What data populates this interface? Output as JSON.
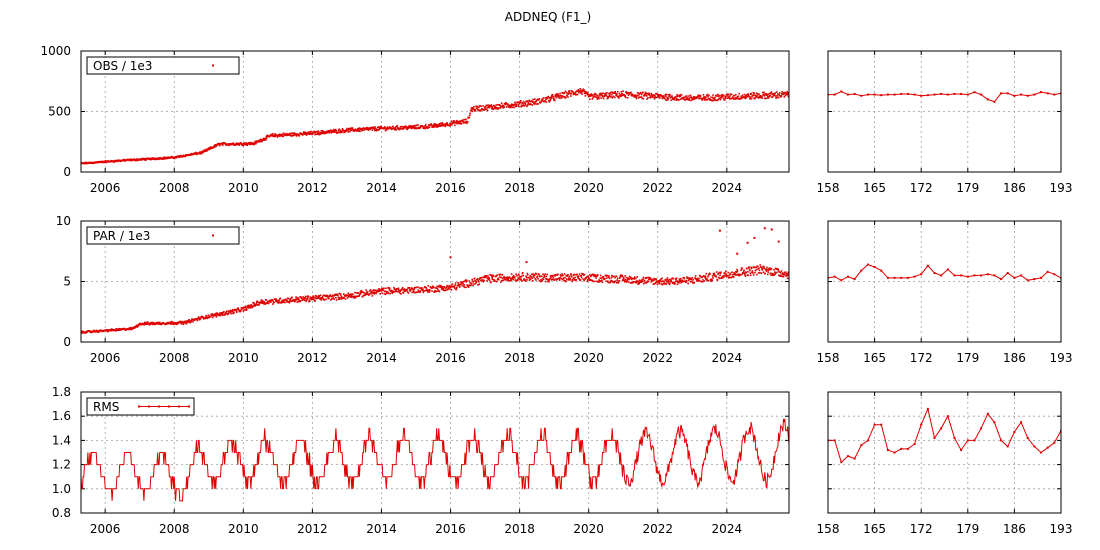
{
  "title": "ADDNEQ (F1_)",
  "colors": {
    "series": "#e00000",
    "grid": "#a0a0a0",
    "frame": "#000000"
  },
  "chart_data": [
    {
      "type": "scatter",
      "id": "obs-long",
      "legend": "OBS / 1e3",
      "legend_style": "points",
      "xlim": [
        2005.3,
        2025.8
      ],
      "ylim": [
        0,
        1000
      ],
      "x_ticks": [
        "2006",
        "2008",
        "2010",
        "2012",
        "2014",
        "2016",
        "2018",
        "2020",
        "2022",
        "2024"
      ],
      "y_ticks": [
        "0",
        "500",
        "1000"
      ],
      "trend": {
        "x": [
          2005.3,
          2006.5,
          2008.0,
          2008.8,
          2009.3,
          2010.3,
          2010.8,
          2012.0,
          2013.0,
          2014.0,
          2015.0,
          2015.5,
          2016.5,
          2016.6,
          2017.5,
          2018.5,
          2019.5,
          2019.8,
          2020.0,
          2021.0,
          2022.0,
          2023.0,
          2024.0,
          2025.8
        ],
        "y": [
          70,
          95,
          120,
          160,
          230,
          235,
          300,
          320,
          345,
          360,
          370,
          380,
          420,
          520,
          545,
          580,
          650,
          670,
          620,
          640,
          625,
          610,
          620,
          640
        ]
      },
      "scatter_pct": 0.04
    },
    {
      "type": "line",
      "id": "obs-short",
      "xlim": [
        158,
        193
      ],
      "ylim": [
        0,
        1000
      ],
      "x_ticks": [
        "158",
        "165",
        "172",
        "179",
        "186",
        "193"
      ],
      "x": [
        158,
        159,
        160,
        161,
        162,
        163,
        164,
        165,
        166,
        167,
        168,
        169,
        170,
        171,
        172,
        173,
        174,
        175,
        176,
        177,
        178,
        179,
        180,
        181,
        182,
        183,
        184,
        185,
        186,
        187,
        188,
        189,
        190,
        191,
        192,
        193
      ],
      "y": [
        640,
        640,
        665,
        640,
        645,
        630,
        640,
        640,
        635,
        640,
        640,
        645,
        645,
        640,
        630,
        635,
        640,
        645,
        640,
        645,
        645,
        640,
        660,
        640,
        600,
        580,
        650,
        650,
        630,
        640,
        630,
        640,
        660,
        650,
        640,
        650
      ]
    },
    {
      "type": "scatter",
      "id": "par-long",
      "legend": "PAR / 1e3",
      "legend_style": "points",
      "xlim": [
        2005.3,
        2025.8
      ],
      "ylim": [
        0,
        10
      ],
      "x_ticks": [
        "2006",
        "2008",
        "2010",
        "2012",
        "2014",
        "2016",
        "2018",
        "2020",
        "2022",
        "2024"
      ],
      "y_ticks": [
        "0",
        "5",
        "10"
      ],
      "trend": {
        "x": [
          2005.3,
          2006.8,
          2007.0,
          2008.3,
          2008.8,
          2010.0,
          2010.5,
          2012.0,
          2013.0,
          2014.0,
          2015.0,
          2016.0,
          2017.0,
          2018.0,
          2019.0,
          2020.0,
          2021.0,
          2022.0,
          2023.0,
          2024.0,
          2025.0,
          2025.8
        ],
        "y": [
          0.8,
          1.1,
          1.5,
          1.6,
          2.0,
          2.7,
          3.3,
          3.6,
          3.8,
          4.2,
          4.3,
          4.5,
          5.2,
          5.4,
          5.3,
          5.3,
          5.2,
          5.0,
          5.1,
          5.6,
          6.0,
          5.6
        ]
      },
      "scatter_pct": 0.06,
      "outliers": [
        [
          2016.0,
          7.0
        ],
        [
          2018.2,
          6.6
        ],
        [
          2023.8,
          9.2
        ],
        [
          2024.3,
          7.3
        ],
        [
          2024.8,
          8.6
        ],
        [
          2025.1,
          9.4
        ],
        [
          2025.3,
          9.3
        ],
        [
          2024.6,
          8.2
        ],
        [
          2025.5,
          8.3
        ]
      ]
    },
    {
      "type": "line",
      "id": "par-short",
      "xlim": [
        158,
        193
      ],
      "ylim": [
        0,
        10
      ],
      "x_ticks": [
        "158",
        "165",
        "172",
        "179",
        "186",
        "193"
      ],
      "x": [
        158,
        159,
        160,
        161,
        162,
        163,
        164,
        165,
        166,
        167,
        168,
        169,
        170,
        171,
        172,
        173,
        174,
        175,
        176,
        177,
        178,
        179,
        180,
        181,
        182,
        183,
        184,
        185,
        186,
        187,
        188,
        189,
        190,
        191,
        192,
        193
      ],
      "y": [
        5.3,
        5.4,
        5.1,
        5.4,
        5.2,
        5.9,
        6.4,
        6.2,
        5.9,
        5.3,
        5.3,
        5.3,
        5.3,
        5.4,
        5.6,
        6.3,
        5.7,
        5.5,
        6.0,
        5.5,
        5.5,
        5.4,
        5.5,
        5.5,
        5.6,
        5.5,
        5.2,
        5.7,
        5.3,
        5.5,
        5.1,
        5.2,
        5.3,
        5.8,
        5.6,
        5.3
      ]
    },
    {
      "type": "line",
      "id": "rms-long",
      "legend": "RMS",
      "legend_style": "linepoints",
      "xlim": [
        2005.3,
        2025.8
      ],
      "ylim": [
        0.8,
        1.8
      ],
      "x_ticks": [
        "2006",
        "2008",
        "2010",
        "2012",
        "2014",
        "2016",
        "2018",
        "2020",
        "2022",
        "2024"
      ],
      "y_ticks": [
        "0.8",
        "1.0",
        "1.2",
        "1.4",
        "1.6",
        "1.8"
      ],
      "seasonal": {
        "period": 1.0,
        "base_x": [
          2005.3,
          2008.5,
          2008.8,
          2021.0,
          2025.8
        ],
        "base_y": [
          1.15,
          1.1,
          1.22,
          1.25,
          1.3
        ],
        "amp_x": [
          2005.3,
          2008.5,
          2008.8,
          2021.0,
          2025.8
        ],
        "amp_y": [
          0.15,
          0.17,
          0.17,
          0.19,
          0.23
        ],
        "peak_phase": 0.65
      }
    },
    {
      "type": "line",
      "id": "rms-short",
      "xlim": [
        158,
        193
      ],
      "ylim": [
        0.8,
        1.8
      ],
      "x_ticks": [
        "158",
        "165",
        "172",
        "179",
        "186",
        "193"
      ],
      "x": [
        158,
        159,
        160,
        161,
        162,
        163,
        164,
        165,
        166,
        167,
        168,
        169,
        170,
        171,
        172,
        173,
        174,
        175,
        176,
        177,
        178,
        179,
        180,
        181,
        182,
        183,
        184,
        185,
        186,
        187,
        188,
        189,
        190,
        191,
        192,
        193
      ],
      "y": [
        1.4,
        1.4,
        1.22,
        1.27,
        1.25,
        1.36,
        1.4,
        1.53,
        1.53,
        1.32,
        1.3,
        1.33,
        1.33,
        1.37,
        1.53,
        1.66,
        1.42,
        1.5,
        1.6,
        1.42,
        1.32,
        1.4,
        1.4,
        1.5,
        1.62,
        1.55,
        1.4,
        1.35,
        1.47,
        1.55,
        1.42,
        1.35,
        1.3,
        1.34,
        1.38,
        1.48
      ]
    }
  ]
}
